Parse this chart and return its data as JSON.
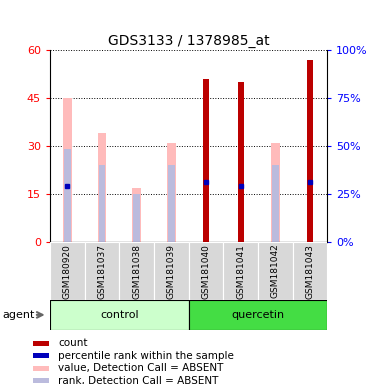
{
  "title": "GDS3133 / 1378985_at",
  "samples": [
    "GSM180920",
    "GSM181037",
    "GSM181038",
    "GSM181039",
    "GSM181040",
    "GSM181041",
    "GSM181042",
    "GSM181043"
  ],
  "count_values": [
    0,
    0,
    0,
    0,
    51,
    50,
    0,
    57
  ],
  "percentile_rank": [
    29,
    0,
    0,
    0,
    31,
    29,
    0,
    31
  ],
  "absent_value": [
    45,
    34,
    17,
    31,
    0,
    0,
    31,
    0
  ],
  "absent_rank": [
    29,
    24,
    15,
    24,
    0,
    0,
    24,
    0
  ],
  "ylim_left": [
    0,
    60
  ],
  "ylim_right": [
    0,
    100
  ],
  "yticks_left": [
    0,
    15,
    30,
    45,
    60
  ],
  "yticks_right": [
    0,
    25,
    50,
    75,
    100
  ],
  "ytick_labels_left": [
    "0",
    "15",
    "30",
    "45",
    "60"
  ],
  "ytick_labels_right": [
    "0%",
    "25%",
    "50%",
    "75%",
    "100%"
  ],
  "color_count": "#bb0000",
  "color_percentile": "#0000bb",
  "color_absent_value": "#ffbbbb",
  "color_absent_rank": "#bbbbdd",
  "color_control_light": "#ccffcc",
  "color_quercetin_bright": "#44dd44",
  "legend_labels": [
    "count",
    "percentile rank within the sample",
    "value, Detection Call = ABSENT",
    "rank, Detection Call = ABSENT"
  ],
  "legend_colors": [
    "#bb0000",
    "#0000bb",
    "#ffbbbb",
    "#bbbbdd"
  ]
}
